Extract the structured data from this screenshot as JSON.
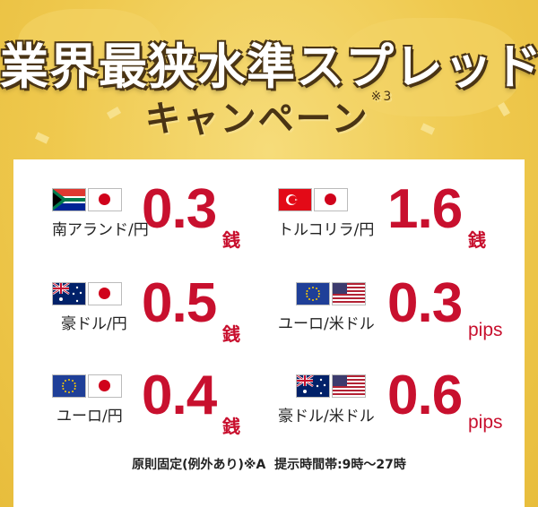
{
  "header": {
    "title": "業界最狭水準スプレッド",
    "subtitle": "キャンペーン",
    "note_mark": "※3"
  },
  "colors": {
    "accent_red": "#c8102e",
    "title_outline": "#4a3414",
    "background": "#efc94e"
  },
  "spreads": [
    {
      "pair": "南アランド/円",
      "value": "0.3",
      "unit": "銭",
      "flags": [
        "south-africa-flag-icon",
        "japan-flag-icon"
      ]
    },
    {
      "pair": "トルコリラ/円",
      "value": "1.6",
      "unit": "銭",
      "flags": [
        "turkey-flag-icon",
        "japan-flag-icon"
      ]
    },
    {
      "pair": "豪ドル/円",
      "value": "0.5",
      "unit": "銭",
      "flags": [
        "australia-flag-icon",
        "japan-flag-icon"
      ]
    },
    {
      "pair": "ユーロ/米ドル",
      "value": "0.3",
      "unit": "pips",
      "flags": [
        "eu-flag-icon",
        "us-flag-icon"
      ]
    },
    {
      "pair": "ユーロ/円",
      "value": "0.4",
      "unit": "銭",
      "flags": [
        "eu-flag-icon",
        "japan-flag-icon"
      ]
    },
    {
      "pair": "豪ドル/米ドル",
      "value": "0.6",
      "unit": "pips",
      "flags": [
        "australia-flag-icon",
        "us-flag-icon"
      ]
    }
  ],
  "footer": {
    "text": "原則固定(例外あり)※A  提示時間帯:9時～27時"
  }
}
